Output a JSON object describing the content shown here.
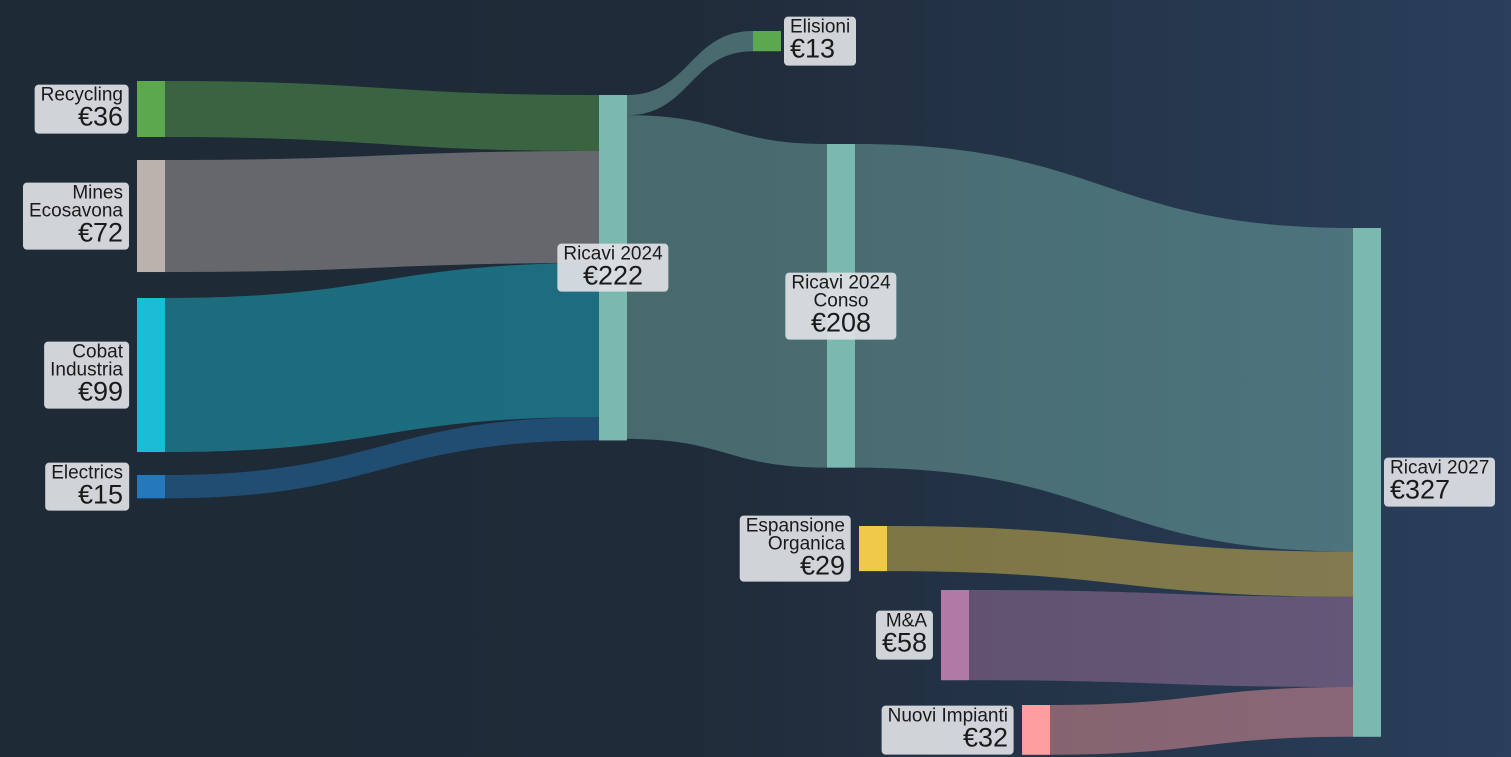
{
  "chart_data": {
    "type": "sankey",
    "nodes": [
      {
        "name": "Recycling",
        "value": 36,
        "value_label": "€36",
        "color": "#5ba84f"
      },
      {
        "name": "Mines\nEcosavona",
        "value": 72,
        "value_label": "€72",
        "color": "#bcb2ad"
      },
      {
        "name": "Cobat\nIndustria",
        "value": 99,
        "value_label": "€99",
        "color": "#1bbcd6"
      },
      {
        "name": "Electrics",
        "value": 15,
        "value_label": "€15",
        "color": "#2478bb"
      },
      {
        "name": "Ricavi 2024",
        "value": 222,
        "value_label": "€222",
        "color": "#7ab8b0"
      },
      {
        "name": "Elisioni",
        "value": 13,
        "value_label": "€13",
        "color": "#5ba84f"
      },
      {
        "name": "Ricavi 2024\nConso",
        "value": 208,
        "value_label": "€208",
        "color": "#7ab8b0"
      },
      {
        "name": "Espansione\nOrganica",
        "value": 29,
        "value_label": "€29",
        "color": "#f0c94a"
      },
      {
        "name": "M&A",
        "value": 58,
        "value_label": "€58",
        "color": "#b07aa4"
      },
      {
        "name": "Nuovi Impianti",
        "value": 32,
        "value_label": "€32",
        "color": "#ff9ea0"
      },
      {
        "name": "Ricavi 2027",
        "value": 327,
        "value_label": "€327",
        "color": "#7ab8b0"
      }
    ],
    "links": [
      {
        "source": 0,
        "target": 4,
        "value": 36
      },
      {
        "source": 1,
        "target": 4,
        "value": 72
      },
      {
        "source": 2,
        "target": 4,
        "value": 99
      },
      {
        "source": 3,
        "target": 4,
        "value": 15
      },
      {
        "source": 4,
        "target": 5,
        "value": 13
      },
      {
        "source": 4,
        "target": 6,
        "value": 208
      },
      {
        "source": 6,
        "target": 10,
        "value": 208
      },
      {
        "source": 7,
        "target": 10,
        "value": 29
      },
      {
        "source": 8,
        "target": 10,
        "value": 58
      },
      {
        "source": 9,
        "target": 10,
        "value": 32
      }
    ]
  }
}
